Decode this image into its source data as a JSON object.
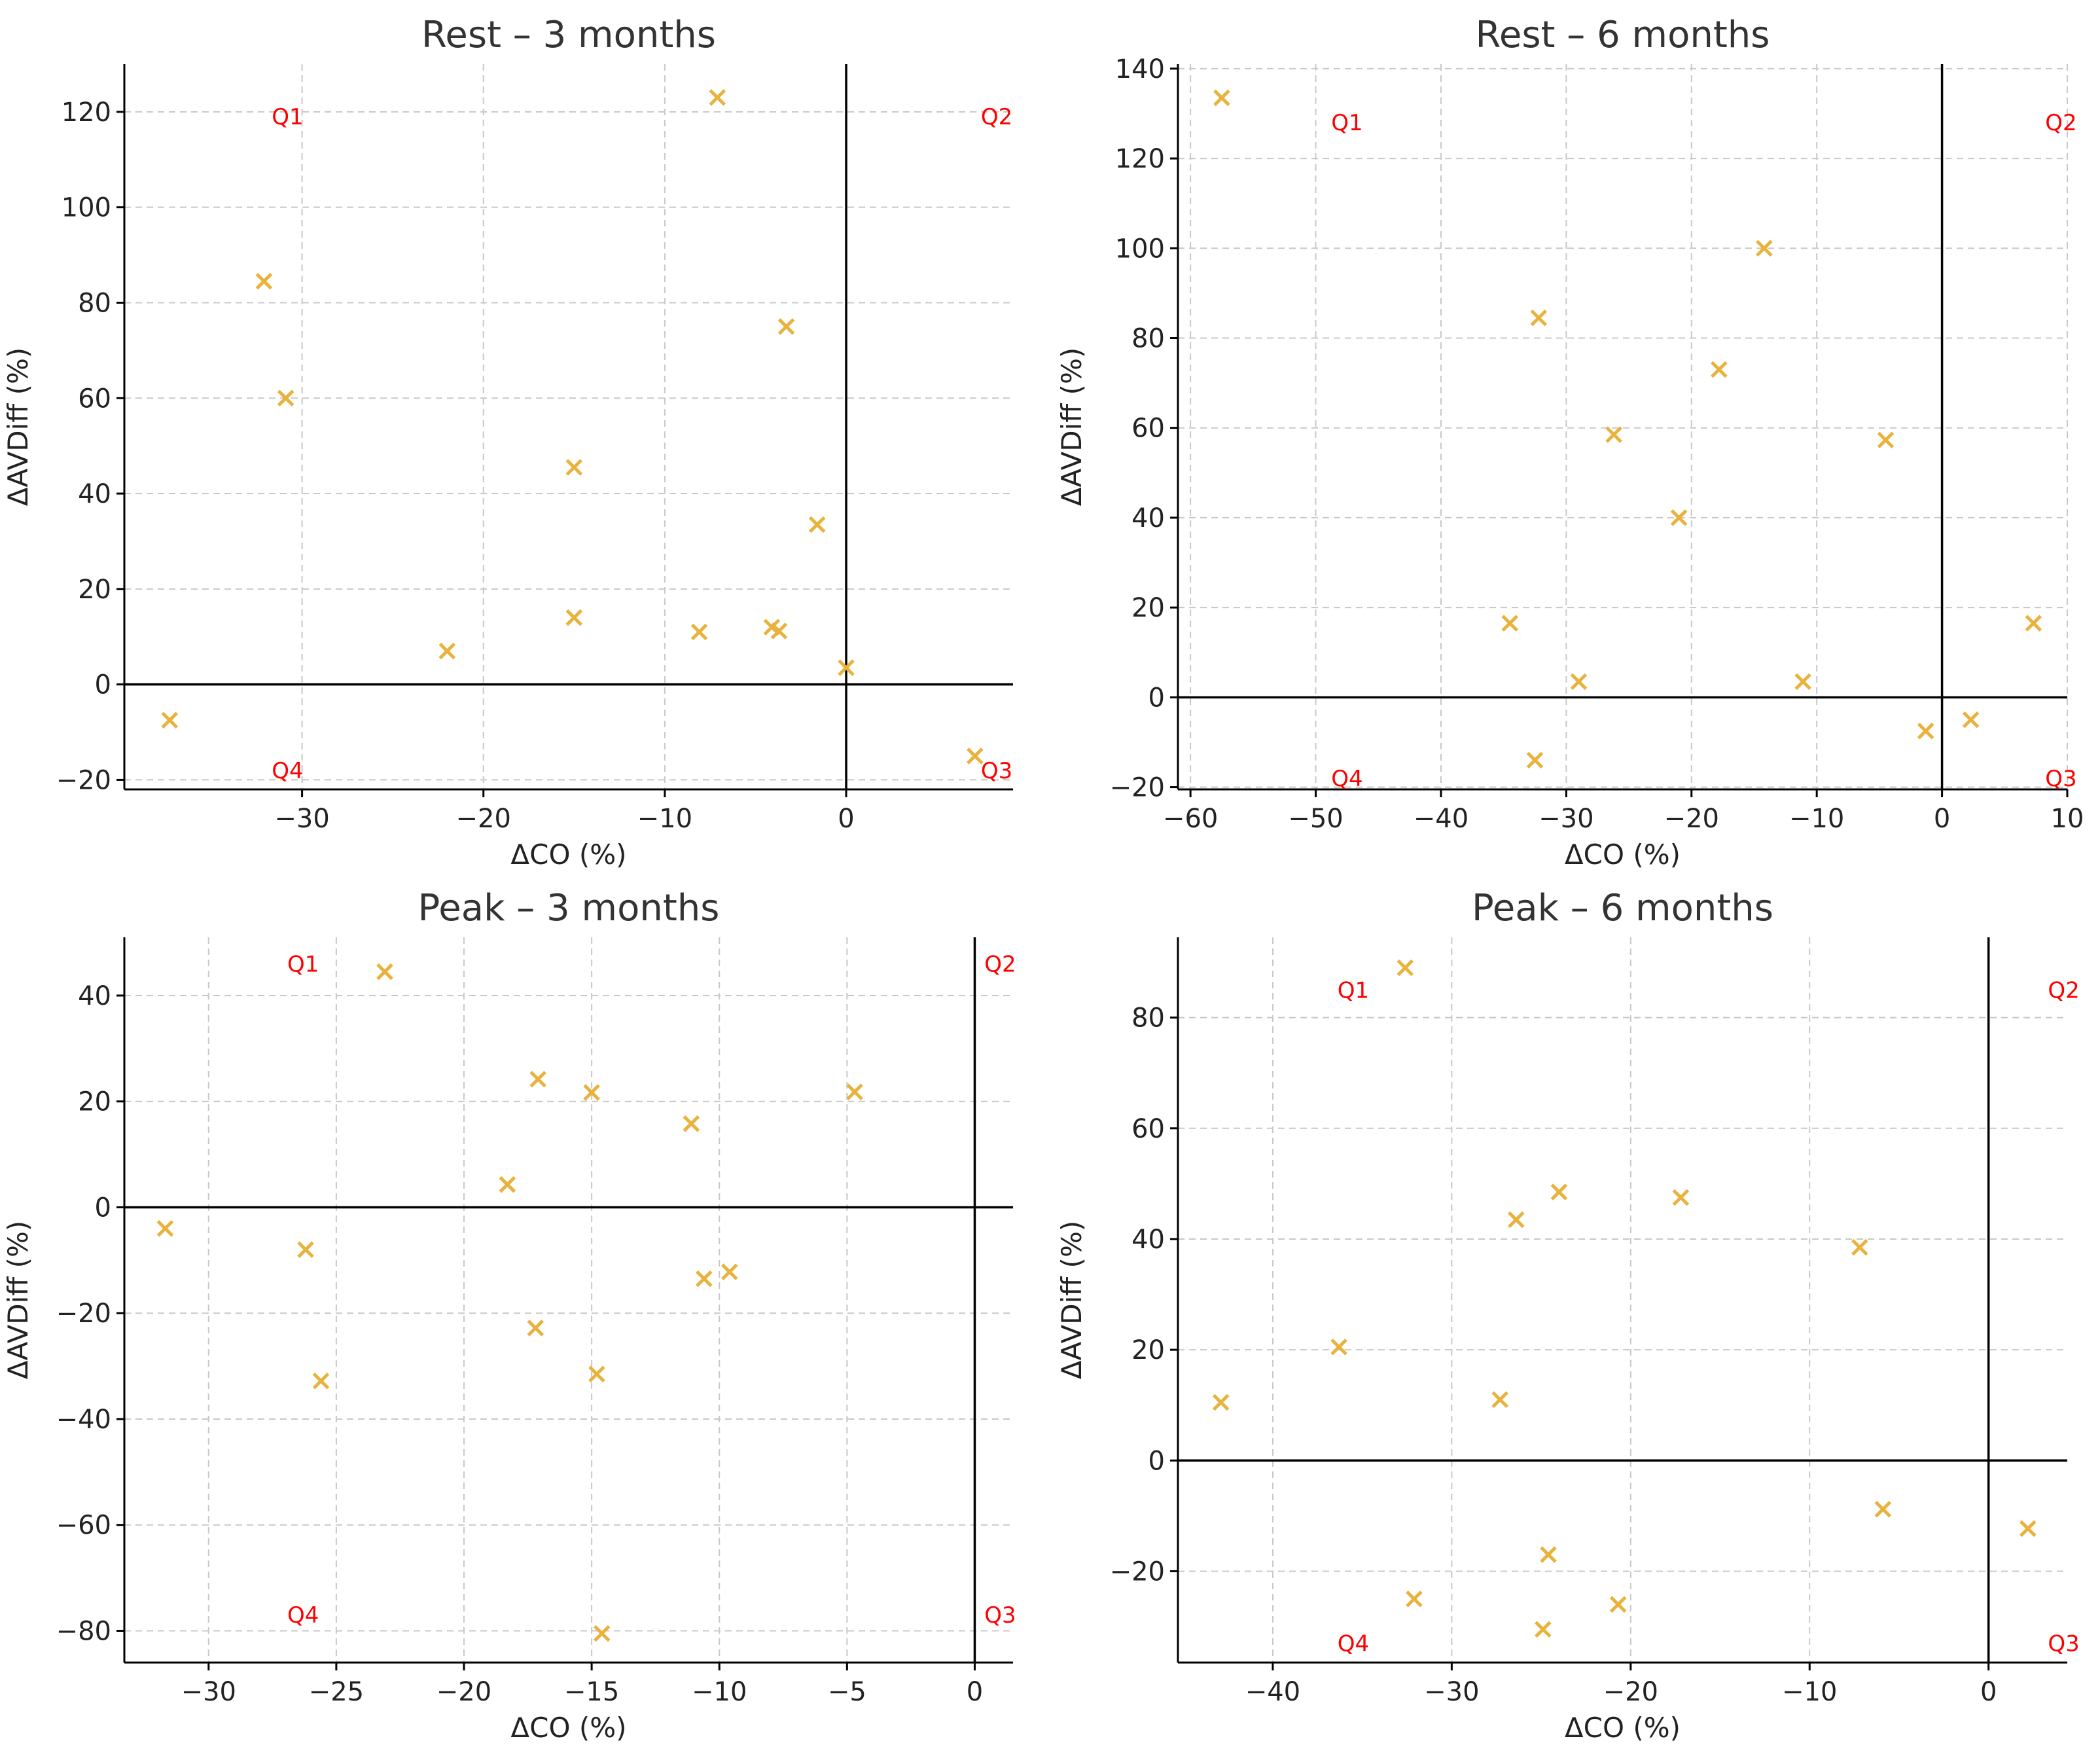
{
  "colors": {
    "marker": "#e8b23c",
    "quadrant_label": "#ff0000",
    "grid": "#c8c8c8",
    "axis": "#000000"
  },
  "chart_data": [
    {
      "type": "scatter",
      "title": "Rest – 3 months",
      "xlabel": "ΔCO (%)",
      "ylabel": "ΔAVDiff (%)",
      "xlim": [
        -39.8,
        9.2
      ],
      "ylim": [
        -22,
        130
      ],
      "xticks": [
        -30,
        -20,
        -10,
        0
      ],
      "yticks": [
        -20,
        0,
        20,
        40,
        60,
        80,
        100,
        120
      ],
      "grid": true,
      "quadrant_labels": {
        "Q1": "Q1",
        "Q2": "Q2",
        "Q3": "Q3",
        "Q4": "Q4"
      },
      "quadrant_label_positions": {
        "Q1": [
          -30.8,
          119
        ],
        "Q2": [
          8.3,
          119
        ],
        "Q3": [
          8.3,
          -18
        ],
        "Q4": [
          -30.8,
          -18
        ]
      },
      "points": [
        [
          -37.3,
          -7.5
        ],
        [
          -32.1,
          84.5
        ],
        [
          -30.9,
          60
        ],
        [
          -22,
          7
        ],
        [
          -15,
          45.5
        ],
        [
          -15,
          14
        ],
        [
          -7.1,
          123
        ],
        [
          -8.1,
          11
        ],
        [
          -4.1,
          12
        ],
        [
          -3.7,
          11.2
        ],
        [
          -3.3,
          75
        ],
        [
          -1.6,
          33.5
        ],
        [
          0,
          3.5
        ],
        [
          7.1,
          -15
        ]
      ]
    },
    {
      "type": "scatter",
      "title": "Rest – 6 months",
      "xlabel": "ΔCO (%)",
      "ylabel": "ΔAVDiff (%)",
      "xlim": [
        -61,
        10
      ],
      "ylim": [
        -20.5,
        141
      ],
      "xticks": [
        -60,
        -50,
        -40,
        -30,
        -20,
        -10,
        0,
        10
      ],
      "yticks": [
        -20,
        0,
        20,
        40,
        60,
        80,
        100,
        120,
        140
      ],
      "grid": true,
      "quadrant_labels": {
        "Q1": "Q1",
        "Q2": "Q2",
        "Q3": "Q3",
        "Q4": "Q4"
      },
      "quadrant_label_positions": {
        "Q1": [
          -47.5,
          128
        ],
        "Q2": [
          9.5,
          128
        ],
        "Q3": [
          9.5,
          -18
        ],
        "Q4": [
          -47.5,
          -18
        ]
      },
      "points": [
        [
          -57.5,
          133.5
        ],
        [
          -34.5,
          16.5
        ],
        [
          -32.5,
          -14
        ],
        [
          -32.2,
          84.5
        ],
        [
          -29,
          3.5
        ],
        [
          -26.2,
          58.5
        ],
        [
          -21,
          40
        ],
        [
          -17.8,
          73
        ],
        [
          -14.2,
          100
        ],
        [
          -11.1,
          3.5
        ],
        [
          -4.5,
          57.3
        ],
        [
          -1.3,
          -7.5
        ],
        [
          2.3,
          -5
        ],
        [
          7.3,
          16.5
        ]
      ]
    },
    {
      "type": "scatter",
      "title": "Peak – 3 months",
      "xlabel": "ΔCO (%)",
      "ylabel": "ΔAVDiff (%)",
      "xlim": [
        -33.3,
        1.5
      ],
      "ylim": [
        -86,
        51
      ],
      "xticks": [
        -30,
        -25,
        -20,
        -15,
        -10,
        -5,
        0
      ],
      "yticks": [
        -80,
        -60,
        -40,
        -20,
        0,
        20,
        40
      ],
      "grid": true,
      "quadrant_labels": {
        "Q1": "Q1",
        "Q2": "Q2",
        "Q3": "Q3",
        "Q4": "Q4"
      },
      "quadrant_label_positions": {
        "Q1": [
          -26.3,
          46
        ],
        "Q2": [
          1.0,
          46
        ],
        "Q3": [
          1.0,
          -77
        ],
        "Q4": [
          -26.3,
          -77
        ]
      },
      "points": [
        [
          -31.7,
          -4
        ],
        [
          -26.2,
          -8
        ],
        [
          -25.6,
          -32.8
        ],
        [
          -23.1,
          44.5
        ],
        [
          -18.3,
          4.3
        ],
        [
          -17.1,
          24.2
        ],
        [
          -17.2,
          -22.8
        ],
        [
          -15,
          21.7
        ],
        [
          -14.8,
          -31.5
        ],
        [
          -14.6,
          -80.5
        ],
        [
          -11.1,
          15.8
        ],
        [
          -10.6,
          -13.5
        ],
        [
          -9.6,
          -12.2
        ],
        [
          -4.7,
          21.8
        ]
      ]
    },
    {
      "type": "scatter",
      "title": "Peak – 6 months",
      "xlabel": "ΔCO (%)",
      "ylabel": "ΔAVDiff (%)",
      "xlim": [
        -45.3,
        4.4
      ],
      "ylim": [
        -36.5,
        94.5
      ],
      "xticks": [
        -40,
        -30,
        -20,
        -10,
        0
      ],
      "yticks": [
        -20,
        0,
        20,
        40,
        60,
        80
      ],
      "grid": true,
      "quadrant_labels": {
        "Q1": "Q1",
        "Q2": "Q2",
        "Q3": "Q3",
        "Q4": "Q4"
      },
      "quadrant_label_positions": {
        "Q1": [
          -35.5,
          85
        ],
        "Q2": [
          4.2,
          85
        ],
        "Q3": [
          4.2,
          -33
        ],
        "Q4": [
          -35.5,
          -33
        ]
      },
      "points": [
        [
          -42.9,
          10.5
        ],
        [
          -36.3,
          20.5
        ],
        [
          -32.6,
          89
        ],
        [
          -32.1,
          -25
        ],
        [
          -27.3,
          11
        ],
        [
          -26.4,
          43.5
        ],
        [
          -24.6,
          -17
        ],
        [
          -24,
          48.5
        ],
        [
          -24.9,
          -30.5
        ],
        [
          -20.7,
          -26
        ],
        [
          -17.2,
          47.5
        ],
        [
          -7.2,
          38.5
        ],
        [
          -5.9,
          -8.8
        ],
        [
          2.2,
          -12.3
        ]
      ]
    }
  ]
}
